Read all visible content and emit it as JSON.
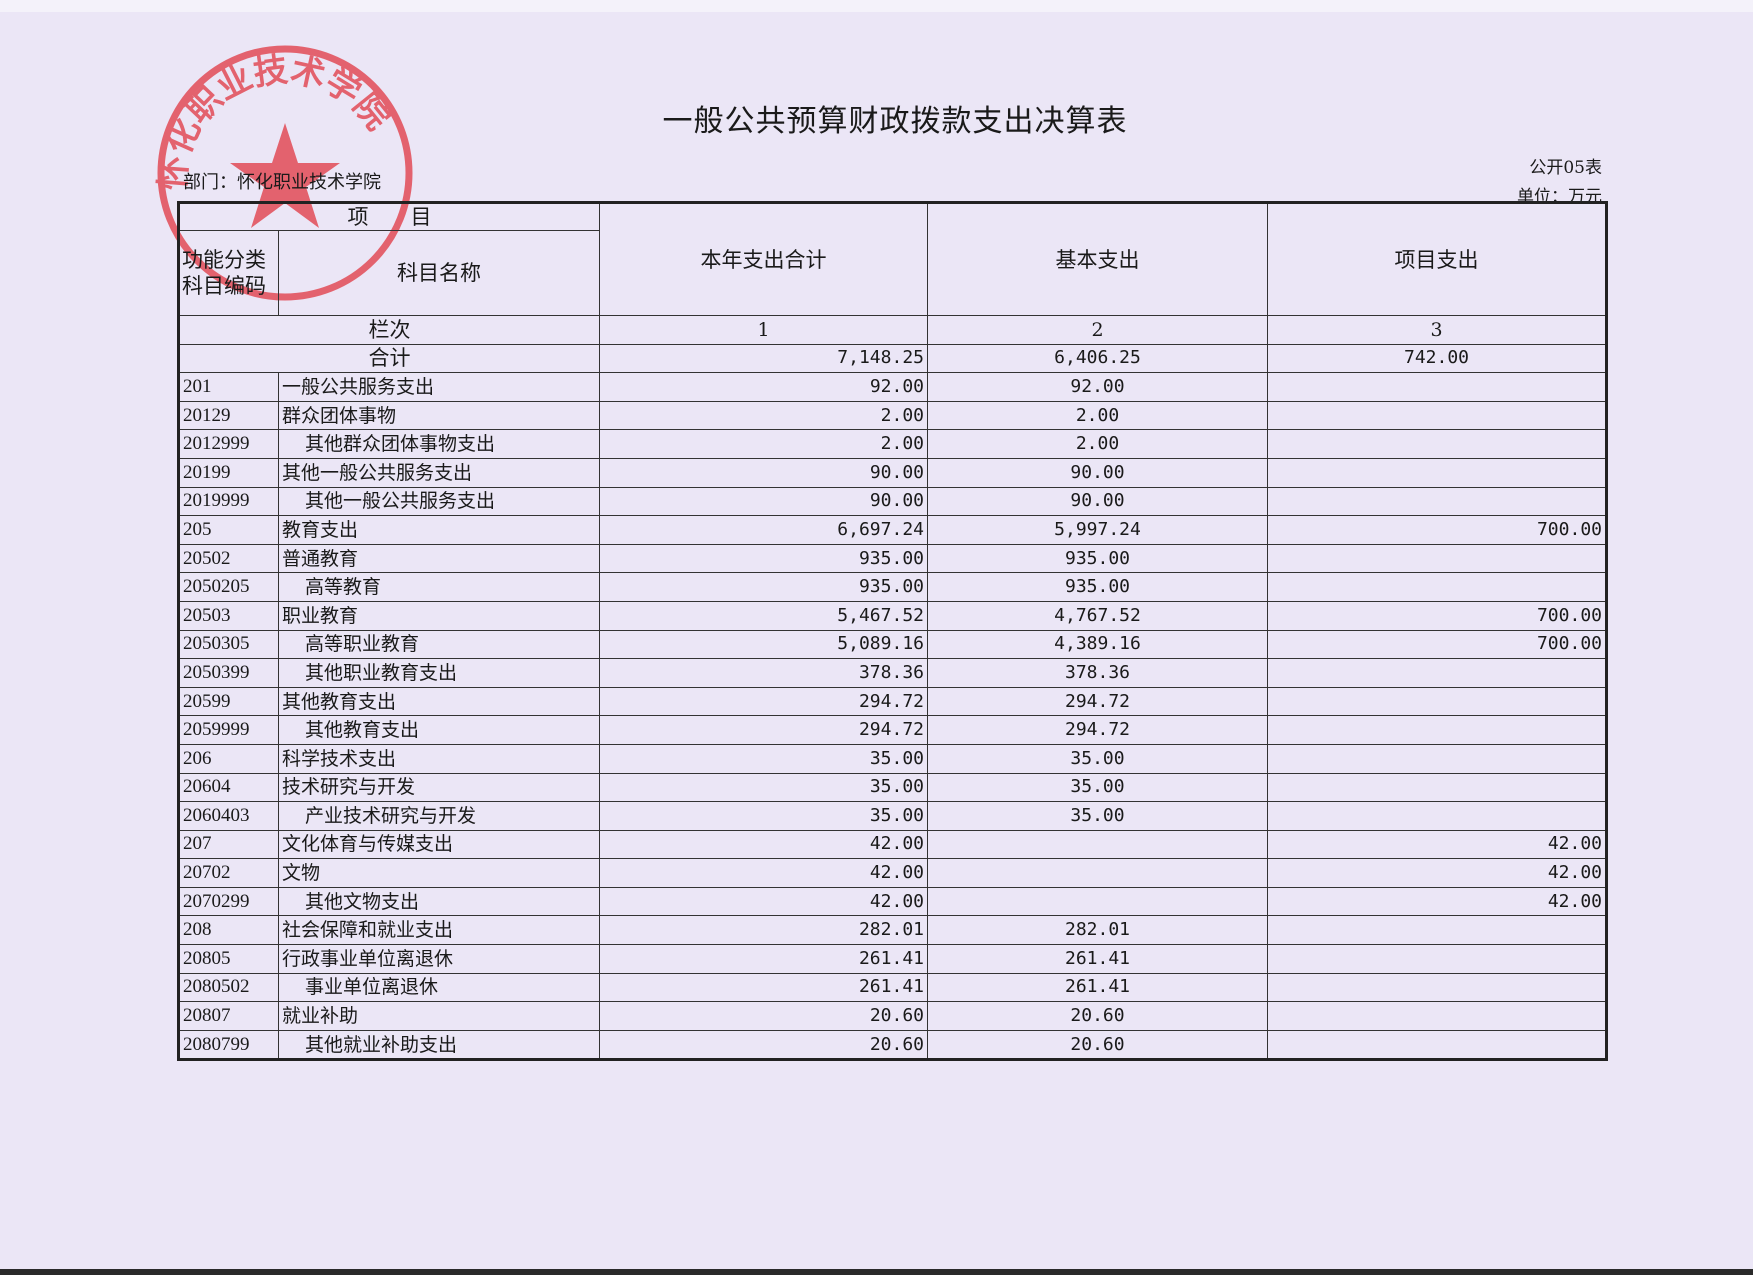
{
  "document": {
    "title": "一般公共预算财政拨款支出决算表",
    "department": "部门：怀化职业技术学院",
    "form_number": "公开05表",
    "unit": "单位：万元",
    "stamp_text": "怀化职业技术学院",
    "stamp_color": "#e0303a"
  },
  "table": {
    "headers": {
      "item": "项　　目",
      "code": "功能分类科目编码",
      "name": "科目名称",
      "total": "本年支出合计",
      "basic": "基本支出",
      "project": "项目支出"
    },
    "column_row": {
      "label": "栏次",
      "c1": "1",
      "c2": "2",
      "c3": "3"
    },
    "sum_row": {
      "label": "合计",
      "total": "7,148.25",
      "basic": "6,406.25",
      "project": "742.00"
    },
    "rows": [
      {
        "code": "201",
        "name": "一般公共服务支出",
        "indent": false,
        "total": "92.00",
        "basic": "92.00",
        "project": ""
      },
      {
        "code": "20129",
        "name": "群众团体事物",
        "indent": false,
        "total": "2.00",
        "basic": "2.00",
        "project": ""
      },
      {
        "code": "2012999",
        "name": "其他群众团体事物支出",
        "indent": true,
        "total": "2.00",
        "basic": "2.00",
        "project": ""
      },
      {
        "code": "20199",
        "name": "其他一般公共服务支出",
        "indent": false,
        "total": "90.00",
        "basic": "90.00",
        "project": ""
      },
      {
        "code": "2019999",
        "name": "其他一般公共服务支出",
        "indent": true,
        "total": "90.00",
        "basic": "90.00",
        "project": ""
      },
      {
        "code": "205",
        "name": "教育支出",
        "indent": false,
        "total": "6,697.24",
        "basic": "5,997.24",
        "project": "700.00"
      },
      {
        "code": "20502",
        "name": "普通教育",
        "indent": false,
        "total": "935.00",
        "basic": "935.00",
        "project": ""
      },
      {
        "code": "2050205",
        "name": "高等教育",
        "indent": true,
        "total": "935.00",
        "basic": "935.00",
        "project": ""
      },
      {
        "code": "20503",
        "name": "职业教育",
        "indent": false,
        "total": "5,467.52",
        "basic": "4,767.52",
        "project": "700.00"
      },
      {
        "code": "2050305",
        "name": "高等职业教育",
        "indent": true,
        "total": "5,089.16",
        "basic": "4,389.16",
        "project": "700.00"
      },
      {
        "code": "2050399",
        "name": "其他职业教育支出",
        "indent": true,
        "total": "378.36",
        "basic": "378.36",
        "project": ""
      },
      {
        "code": "20599",
        "name": "其他教育支出",
        "indent": false,
        "total": "294.72",
        "basic": "294.72",
        "project": ""
      },
      {
        "code": "2059999",
        "name": "其他教育支出",
        "indent": true,
        "total": "294.72",
        "basic": "294.72",
        "project": ""
      },
      {
        "code": "206",
        "name": "科学技术支出",
        "indent": false,
        "total": "35.00",
        "basic": "35.00",
        "project": ""
      },
      {
        "code": "20604",
        "name": "技术研究与开发",
        "indent": false,
        "total": "35.00",
        "basic": "35.00",
        "project": ""
      },
      {
        "code": "2060403",
        "name": "产业技术研究与开发",
        "indent": true,
        "total": "35.00",
        "basic": "35.00",
        "project": ""
      },
      {
        "code": "207",
        "name": "文化体育与传媒支出",
        "indent": false,
        "total": "42.00",
        "basic": "",
        "project": "42.00"
      },
      {
        "code": "20702",
        "name": "文物",
        "indent": false,
        "total": "42.00",
        "basic": "",
        "project": "42.00"
      },
      {
        "code": "2070299",
        "name": "其他文物支出",
        "indent": true,
        "total": "42.00",
        "basic": "",
        "project": "42.00"
      },
      {
        "code": "208",
        "name": "社会保障和就业支出",
        "indent": false,
        "total": "282.01",
        "basic": "282.01",
        "project": ""
      },
      {
        "code": "20805",
        "name": "行政事业单位离退休",
        "indent": false,
        "total": "261.41",
        "basic": "261.41",
        "project": ""
      },
      {
        "code": "2080502",
        "name": "事业单位离退休",
        "indent": true,
        "total": "261.41",
        "basic": "261.41",
        "project": ""
      },
      {
        "code": "20807",
        "name": "就业补助",
        "indent": false,
        "total": "20.60",
        "basic": "20.60",
        "project": ""
      },
      {
        "code": "2080799",
        "name": "其他就业补助支出",
        "indent": true,
        "total": "20.60",
        "basic": "20.60",
        "project": ""
      }
    ]
  }
}
